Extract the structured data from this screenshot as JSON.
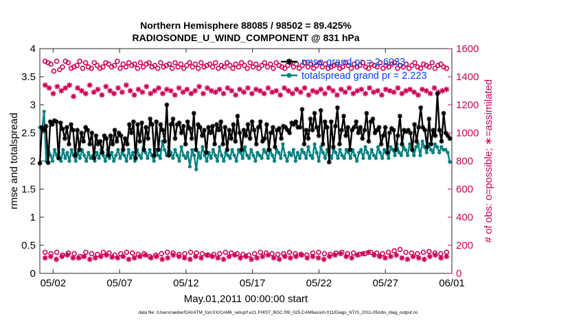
{
  "chart_data": {
    "type": "line",
    "title_line1": "Northern Hemisphere 88085 / 98502 = 89.425%",
    "title_line2": "RADIOSONDE_U_WIND_COMPONENT @ 831 hPa",
    "xlabel": "May.01,2011 00:00:00 start",
    "ylabel_left": "rmse and totalspread",
    "ylabel_right": "# of obs: o=possible; ∗=assimilated",
    "footer": "data file: /Users/raeder/DAI/ATM_forcXX/CAM6_setup/f.e21.FHIST_BGC.f09_025.CAM6assim.011/Diags_NTrS_2011-05/obs_diag_output.nc",
    "xlim": [
      0,
      31
    ],
    "ylim_left": [
      0,
      4
    ],
    "ylim_right": [
      0,
      1600
    ],
    "x_ticks": [
      1,
      6,
      11,
      16,
      21,
      26,
      31
    ],
    "x_tick_labels": [
      "05/02",
      "05/07",
      "05/12",
      "05/17",
      "05/22",
      "05/27",
      "06/01"
    ],
    "y_left_ticks": [
      "0",
      "0.5",
      "1",
      "1.5",
      "2",
      "2.5",
      "3",
      "3.5",
      "4"
    ],
    "y_right_ticks": [
      "0",
      "200",
      "400",
      "600",
      "800",
      "1000",
      "1200",
      "1400",
      "1600"
    ],
    "legend": [
      {
        "label": "rmse grand pr = 2.6033",
        "color": "#000000"
      },
      {
        "label": "totalspread grand pr = 2.223",
        "color": "#008080"
      }
    ],
    "series": [
      {
        "name": "rmse",
        "axis": "left",
        "color": "#000000",
        "marker": "star",
        "values": [
          1.96,
          2.6,
          2.55,
          2.62,
          1.97,
          2.7,
          2.65,
          2.72,
          2.7,
          2.05,
          2.68,
          2.57,
          2.4,
          2.6,
          2.3,
          2.65,
          2.55,
          2.1,
          2.55,
          2.2,
          2.5,
          2.35,
          2.6,
          2.55,
          2.3,
          2.5,
          2.05,
          2.45,
          2.3,
          2.35,
          2.15,
          2.45,
          2.4,
          2.1,
          2.45,
          2.3,
          2.55,
          2.35,
          2.5,
          2.45,
          2.2,
          2.4,
          2.3,
          2.65,
          2.5,
          2.7,
          2.05,
          2.65,
          2.35,
          2.68,
          2.2,
          2.6,
          2.4,
          2.75,
          2.65,
          2.1,
          2.7,
          2.2,
          2.65,
          2.55,
          2.35,
          3.0,
          2.1,
          2.65,
          2.75,
          2.4,
          2.65,
          2.68,
          2.5,
          2.62,
          2.3,
          2.7,
          2.58,
          2.4,
          2.85,
          2.2,
          2.65,
          2.6,
          2.45,
          2.55,
          2.15,
          2.6,
          2.5,
          2.62,
          2.3,
          2.65,
          2.55,
          2.7,
          2.3,
          2.6,
          2.2,
          2.55,
          2.4,
          2.65,
          2.35,
          2.8,
          2.5,
          2.2,
          2.55,
          2.45,
          2.65,
          2.4,
          2.7,
          2.55,
          2.3,
          2.6,
          2.7,
          2.35,
          2.4,
          2.65,
          2.2,
          2.5,
          2.6,
          2.25,
          2.55,
          2.58,
          2.4,
          2.62,
          2.6,
          2.55,
          2.5,
          2.68,
          2.65,
          2.7,
          2.6,
          2.6,
          2.92,
          2.3,
          2.55,
          2.4,
          2.75,
          2.55,
          2.85,
          2.6,
          2.45,
          2.9,
          2.3,
          2.7,
          2.6,
          1.98,
          2.7,
          2.25,
          2.62,
          2.95,
          2.3,
          2.55,
          2.8,
          2.45,
          2.6,
          2.2,
          2.55,
          2.6,
          2.7,
          2.5,
          2.6,
          2.4,
          2.55,
          2.85,
          2.35,
          2.7,
          2.75,
          2.5,
          2.55,
          2.6,
          2.3,
          2.45,
          2.6,
          2.15,
          2.5,
          2.58,
          2.55,
          2.2,
          2.45,
          2.8,
          2.3,
          2.55,
          2.52,
          2.55,
          2.5,
          2.2,
          2.65,
          2.35,
          2.6,
          2.95,
          2.6,
          2.55,
          2.25,
          2.75,
          2.3,
          2.55,
          2.45,
          3.2,
          2.55,
          2.35,
          2.85,
          2.5,
          2.45,
          2.4
        ]
      },
      {
        "name": "totalspread",
        "axis": "left",
        "color": "#008080",
        "marker": "dot",
        "values": [
          2.6,
          2.55,
          2.88,
          2.0,
          2.25,
          2.1,
          2.0,
          2.2,
          2.1,
          2.15,
          2.0,
          2.2,
          2.05,
          2.15,
          2.0,
          2.2,
          2.1,
          2.0,
          2.15,
          2.05,
          2.2,
          2.1,
          2.0,
          2.15,
          2.05,
          2.1,
          2.0,
          2.15,
          2.05,
          2.2,
          2.1,
          2.0,
          2.2,
          2.05,
          2.15,
          2.0,
          2.1,
          2.2,
          2.05,
          2.15,
          2.1,
          2.0,
          2.2,
          2.05,
          2.15,
          2.0,
          2.2,
          2.1,
          2.05,
          2.25,
          2.15,
          2.05,
          2.2,
          2.1,
          2.0,
          2.2,
          2.1,
          2.05,
          2.35,
          2.2,
          2.1,
          2.25,
          2.15,
          2.05,
          2.2,
          2.1,
          2.0,
          2.25,
          2.1,
          2.05,
          2.15,
          1.9,
          2.2,
          2.1,
          1.85,
          2.15,
          2.05,
          2.25,
          2.1,
          2.0,
          2.15,
          2.05,
          2.2,
          2.1,
          2.0,
          2.25,
          2.1,
          2.0,
          2.15,
          2.1,
          2.05,
          2.2,
          2.1,
          2.0,
          2.2,
          2.15,
          2.05,
          2.25,
          2.1,
          2.05,
          2.2,
          2.1,
          2.0,
          2.15,
          2.1,
          2.05,
          2.2,
          2.15,
          2.05,
          2.2,
          2.1,
          2.0,
          2.2,
          2.15,
          2.05,
          2.3,
          2.1,
          2.0,
          2.15,
          2.1,
          2.2,
          2.0,
          2.15,
          2.05,
          2.2,
          2.15,
          2.05,
          2.25,
          2.1,
          2.05,
          2.3,
          2.15,
          2.0,
          2.25,
          2.15,
          2.05,
          2.2,
          2.1,
          2.05,
          2.2,
          2.15,
          2.05,
          2.2,
          2.1,
          2.05,
          2.2,
          2.15,
          2.05,
          2.2,
          2.1,
          2.0,
          2.15,
          2.2,
          2.05,
          2.25,
          2.15,
          2.05,
          2.2,
          2.1,
          2.05,
          2.25,
          2.15,
          2.05,
          2.2,
          2.15,
          2.05,
          2.25,
          2.2,
          2.1,
          2.3,
          2.15,
          2.1,
          2.25,
          2.2,
          2.1,
          2.3,
          2.2,
          2.1,
          2.25,
          2.3,
          2.1,
          2.35,
          2.25,
          2.15,
          2.3,
          2.2,
          2.15,
          2.3,
          2.25,
          2.15,
          2.25,
          2.2,
          2.2,
          2.15,
          1.98
        ]
      },
      {
        "name": "# obs possible (upper)",
        "axis": "right",
        "color": "#cc0055",
        "marker": "circle",
        "values": [
          1510,
          1500,
          1490,
          1440,
          1510,
          1450,
          1470,
          1510,
          1500,
          1460,
          1470,
          1480,
          1510,
          1460,
          1500,
          1470,
          1460,
          1500,
          1480,
          1460,
          1470,
          1500,
          1490,
          1470,
          1480,
          1510,
          1460,
          1490,
          1470,
          1500,
          1480,
          1490,
          1460,
          1500,
          1470,
          1490,
          1500,
          1470,
          1480,
          1460,
          1500,
          1470,
          1480,
          1490,
          1460,
          1500,
          1470,
          1490,
          1460,
          1480,
          1500,
          1470,
          1490,
          1460,
          1500,
          1470,
          1480,
          1490,
          1470,
          1500,
          1460,
          1480,
          1470,
          1500,
          1480,
          1460,
          1490,
          1470,
          1500,
          1480,
          1460,
          1500,
          1470,
          1490,
          1460,
          1480,
          1500,
          1470,
          1490,
          1460,
          1500,
          1480,
          1470,
          1460,
          1480,
          1500,
          1470,
          1490,
          1460,
          1480,
          1500,
          1470,
          1490,
          1460,
          1480,
          1500,
          1470,
          1490,
          1460,
          1470,
          1480,
          1490,
          1460,
          1470,
          1500,
          1480,
          1460,
          1490,
          1470,
          1480,
          1500,
          1470,
          1460,
          1490,
          1480,
          1470,
          1500,
          1460,
          1480,
          1470,
          1490,
          1500,
          1460,
          1480,
          1470,
          1490,
          1460,
          1480,
          1500,
          1470,
          1460,
          1490,
          1480,
          1470,
          1500,
          1460,
          1480,
          1490,
          1470,
          1460
        ]
      },
      {
        "name": "# obs assimilated (upper)",
        "axis": "right",
        "color": "#cc0055",
        "marker": "asterisk",
        "values": [
          1340,
          1320,
          1280,
          1330,
          1300,
          1320,
          1340,
          1260,
          1320,
          1300,
          1280,
          1340,
          1290,
          1310,
          1270,
          1330,
          1300,
          1280,
          1320,
          1290,
          1340,
          1300,
          1270,
          1310,
          1290,
          1330,
          1280,
          1300,
          1320,
          1280,
          1310,
          1300,
          1270,
          1320,
          1290,
          1310,
          1280,
          1300,
          1330,
          1280,
          1320,
          1300,
          1290,
          1310,
          1280,
          1320,
          1300,
          1270,
          1310,
          1290,
          1320,
          1280,
          1310,
          1300,
          1280,
          1320,
          1290,
          1300,
          1270,
          1320,
          1300,
          1280,
          1310,
          1290,
          1320,
          1270,
          1300,
          1290,
          1310,
          1280,
          1320,
          1300,
          1270,
          1310,
          1290,
          1320,
          1280,
          1300,
          1310,
          1280,
          1320,
          1290,
          1300,
          1270,
          1310,
          1300,
          1290,
          1320,
          1280,
          1300,
          1310,
          1290,
          1270,
          1310,
          1300,
          1280,
          1320,
          1290,
          1300,
          1310
        ]
      },
      {
        "name": "# obs possible (lower)",
        "axis": "right",
        "color": "#cc0055",
        "marker": "circle",
        "values": [
          150,
          140,
          150,
          130,
          145,
          140,
          120,
          150,
          140,
          135,
          150,
          145,
          130,
          140,
          150,
          145,
          135,
          140,
          120,
          130,
          140,
          150,
          145,
          135,
          140,
          150,
          145,
          140,
          130,
          135,
          140,
          150,
          145,
          140,
          135,
          130,
          140,
          150,
          145,
          140,
          135,
          140,
          150,
          140,
          135,
          130,
          145,
          150,
          140,
          135,
          145,
          150,
          140,
          145,
          135,
          140,
          150,
          145,
          140,
          150,
          160,
          170,
          150,
          145,
          140,
          150,
          155,
          145,
          140,
          150
        ]
      },
      {
        "name": "# obs assimilated (lower)",
        "axis": "right",
        "color": "#cc0055",
        "marker": "asterisk",
        "values": [
          110,
          120,
          100,
          120,
          130,
          110,
          110,
          120,
          100,
          110,
          120,
          130,
          115,
          110,
          120,
          100,
          110,
          120,
          130,
          110,
          120,
          100,
          110,
          130,
          120,
          110,
          100,
          120,
          110,
          130,
          120,
          110,
          100,
          120,
          130,
          110,
          120,
          100,
          110,
          120,
          130,
          110,
          100,
          120,
          110,
          120,
          130,
          110,
          120,
          110,
          100,
          120,
          130,
          140,
          120,
          110,
          130,
          140,
          150,
          130,
          120,
          110,
          120,
          130,
          110,
          100,
          120,
          110,
          100,
          120,
          130,
          110,
          120
        ]
      }
    ]
  }
}
